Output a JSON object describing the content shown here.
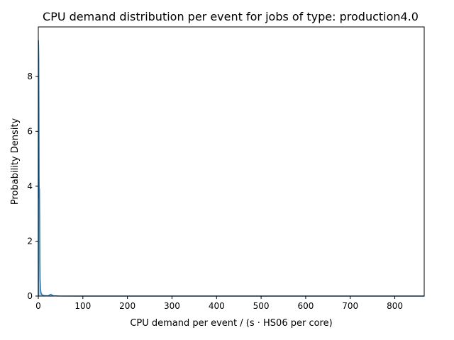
{
  "chart_data": {
    "type": "area",
    "title": "CPU demand distribution per event for jobs of type: production4.0",
    "xlabel": "CPU demand per event / (s · HS06 per core)",
    "ylabel": "Probability Density",
    "xlim": [
      0,
      866
    ],
    "ylim": [
      0,
      9.8
    ],
    "xticks": [
      0,
      100,
      200,
      300,
      400,
      500,
      600,
      700,
      800
    ],
    "yticks": [
      0,
      2,
      4,
      6,
      8
    ],
    "series": [
      {
        "color": "#1f77b4",
        "x": [
          0,
          0.3,
          0.6,
          1.0,
          1.4,
          1.8,
          2.2,
          2.6,
          3.0,
          3.5,
          4.0,
          5.0,
          6.0,
          8.0,
          12.0,
          20.0,
          24.0,
          26.0,
          28.0,
          30.0,
          34.0,
          45.0,
          100.0,
          300.0,
          500.0,
          866.0
        ],
        "y": [
          0,
          9.3,
          9.1,
          8.6,
          6.8,
          4.2,
          3.6,
          3.9,
          2.9,
          1.3,
          0.6,
          0.25,
          0.12,
          0.05,
          0.02,
          0.01,
          0.02,
          0.05,
          0.06,
          0.04,
          0.01,
          0.004,
          0.001,
          0.0003,
          0.0001,
          5e-05
        ]
      }
    ],
    "grid": false,
    "legend": "none"
  }
}
